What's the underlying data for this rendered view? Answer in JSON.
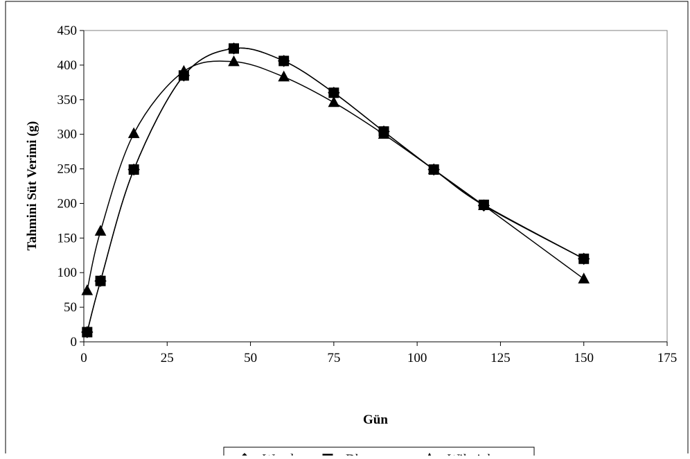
{
  "chart_data": {
    "type": "line",
    "title": "",
    "xlabel": "Gün",
    "ylabel": "Tahmini Süt Verimi (g)",
    "xlim": [
      0,
      175
    ],
    "ylim": [
      0,
      450
    ],
    "x_ticks": [
      0,
      25,
      50,
      75,
      100,
      125,
      150,
      175
    ],
    "y_ticks": [
      0,
      50,
      100,
      150,
      200,
      250,
      300,
      350,
      400,
      450
    ],
    "x_tick_labels": [
      "0",
      "25",
      "50",
      "75",
      "100",
      "125",
      "150",
      "175"
    ],
    "y_tick_labels": [
      "0",
      "50",
      "100",
      "150",
      "200",
      "250",
      "300",
      "350",
      "400",
      "450"
    ],
    "grid": false,
    "legend_position": "bottom",
    "smooth": true,
    "x": [
      1,
      5,
      15,
      30,
      45,
      60,
      75,
      90,
      105,
      120,
      150
    ],
    "series": [
      {
        "name": "Wood",
        "marker": "diamond",
        "color": "#000000",
        "values": [
          14,
          88,
          249,
          385,
          424,
          406,
          360,
          304,
          249,
          197,
          120
        ]
      },
      {
        "name": "Dhanoa",
        "marker": "square",
        "color": "#000000",
        "values": [
          14,
          88,
          249,
          385,
          424,
          406,
          360,
          304,
          249,
          198,
          120
        ]
      },
      {
        "name": "Wilmink",
        "marker": "triangle",
        "color": "#000000",
        "values": [
          74,
          160,
          301,
          391,
          405,
          383,
          346,
          300,
          249,
          197,
          91
        ]
      }
    ]
  }
}
